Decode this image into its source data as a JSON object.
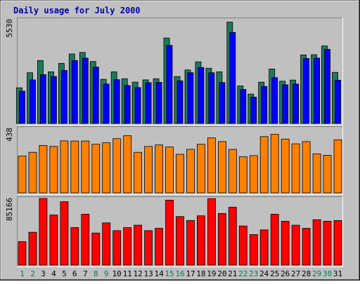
{
  "chart_data": {
    "type": "bar",
    "title": "Daily usage for July 2000",
    "categories": [
      "1",
      "2",
      "3",
      "4",
      "5",
      "6",
      "7",
      "8",
      "9",
      "10",
      "11",
      "12",
      "13",
      "14",
      "15",
      "16",
      "17",
      "18",
      "19",
      "20",
      "21",
      "22",
      "23",
      "24",
      "25",
      "26",
      "27",
      "28",
      "29",
      "30",
      "31"
    ],
    "weekend_days": [
      "1",
      "2",
      "8",
      "9",
      "15",
      "16",
      "22",
      "23",
      "29",
      "30"
    ],
    "panels": [
      {
        "name": "top",
        "ymax_label": "5530",
        "ylim": [
          0,
          5530
        ],
        "series": [
          {
            "color": "#1d7a5c",
            "values": [
              1900,
              2700,
              3350,
              2750,
              3200,
              3700,
              3780,
              3300,
              2350,
              2750,
              2380,
              2200,
              2320,
              2380,
              4550,
              2500,
              2850,
              3280,
              2940,
              2750,
              5400,
              2000,
              1560,
              2200,
              2900,
              2250,
              2310,
              3650,
              3660,
              4130,
              2720
            ]
          },
          {
            "color": "#0000ff",
            "values": [
              1720,
              2320,
              2600,
              2500,
              2820,
              3350,
              3480,
              3000,
              2100,
              2330,
              2020,
              1910,
              2170,
              2190,
              4160,
              2270,
              2700,
              2980,
              2700,
              2180,
              4850,
              1810,
              1400,
              1970,
              2440,
              2060,
              2100,
              3460,
              3480,
              3950,
              2300
            ]
          }
        ]
      },
      {
        "name": "middle",
        "ymax_label": "438",
        "ylim": [
          0,
          438
        ],
        "series": [
          {
            "color": "#ff8000",
            "values": [
              250,
              275,
              322,
              315,
              353,
              352,
              352,
              330,
              340,
              368,
              388,
              275,
              315,
              325,
              312,
              262,
              295,
              330,
              373,
              348,
              295,
              245,
              253,
              382,
              398,
              365,
              333,
              348,
              265,
              255,
              360
            ]
          }
        ]
      },
      {
        "name": "bottom",
        "ymax_label": "85166",
        "ylim": [
          0,
          85166
        ],
        "series": [
          {
            "color": "#ff0000",
            "values": [
              30000,
              42000,
              85166,
              64000,
              81000,
              48000,
              65000,
              41000,
              54000,
              44000,
              48000,
              51000,
              44000,
              47000,
              83000,
              62000,
              57000,
              63000,
              85000,
              66000,
              74000,
              50000,
              39000,
              45000,
              65000,
              56000,
              51000,
              47000,
              58000,
              56000,
              57000
            ]
          }
        ]
      }
    ]
  }
}
